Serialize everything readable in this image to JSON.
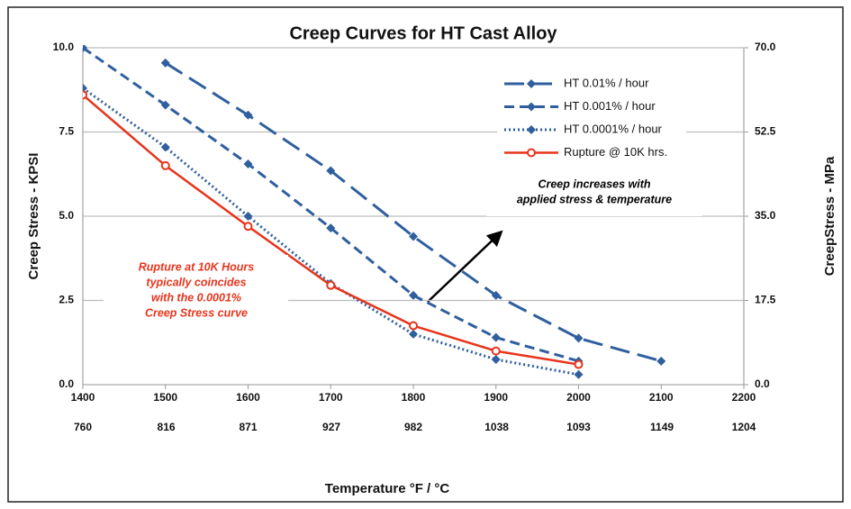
{
  "chart_data": {
    "type": "line",
    "title": "Creep Curves for HT Cast Alloy",
    "y_label": "Creep Stress - KPSI",
    "y2_label": "CreepStress - MPa",
    "x_label": "Temperature °F / °C",
    "xlim": [
      1400,
      2200
    ],
    "xticks": [
      1400,
      1500,
      1600,
      1700,
      1800,
      1900,
      2000,
      2100,
      2200
    ],
    "x2lim": [
      760,
      1204
    ],
    "x2ticks": [
      760,
      816,
      871,
      927,
      982,
      1038,
      1093,
      1149,
      1204
    ],
    "ylim": [
      0,
      10
    ],
    "yticks": [
      {
        "value": 0,
        "label": "0.0"
      },
      2.5,
      {
        "value": 5,
        "label": "5.0"
      },
      7.5,
      {
        "value": 10,
        "label": "10.0"
      }
    ],
    "y2lim": [
      0,
      70
    ],
    "y2ticks": [
      {
        "value": 0,
        "label": "0.0"
      },
      17.5,
      {
        "value": 35,
        "label": "35.0"
      },
      52.5,
      {
        "value": 70,
        "label": "70.0"
      }
    ],
    "grid": true,
    "legend": "top-right",
    "series": [
      {
        "name": "HT  0.01% / hour",
        "color": "#2f5f9e",
        "line_style": "long-dash",
        "marker": "diamond",
        "x": [
          1500,
          1600,
          1700,
          1800,
          1900,
          2000,
          2100
        ],
        "values": [
          9.55,
          8.0,
          6.35,
          4.4,
          2.65,
          1.38,
          0.7
        ]
      },
      {
        "name": "HT  0.001% / hour",
        "color": "#2f5f9e",
        "line_style": "dash",
        "marker": "diamond",
        "x": [
          1400,
          1500,
          1600,
          1700,
          1800,
          1900,
          2000
        ],
        "values": [
          10.0,
          8.3,
          6.55,
          4.65,
          2.65,
          1.4,
          0.7
        ]
      },
      {
        "name": "HT  0.0001% / hour",
        "color": "#2f5f9e",
        "line_style": "dot",
        "marker": "diamond",
        "x": [
          1400,
          1500,
          1600,
          1700,
          1800,
          1900,
          2000
        ],
        "values": [
          8.8,
          7.05,
          5.0,
          3.0,
          1.5,
          0.75,
          0.3
        ]
      },
      {
        "name": "Rupture @ 10K hrs.",
        "color": "#e8341c",
        "line_style": "solid",
        "marker": "open-circle",
        "x": [
          1400,
          1500,
          1600,
          1700,
          1800,
          1900,
          2000
        ],
        "values": [
          8.6,
          6.5,
          4.7,
          2.95,
          1.75,
          1.0,
          0.6
        ]
      }
    ],
    "annotations": [
      {
        "lines": [
          "Rupture at 10K Hours",
          "typically coincides",
          "with the 0.0001%",
          "Creep Stress curve"
        ],
        "color": "#e8341c"
      },
      {
        "lines": [
          "Creep increases with",
          "applied stress & temperature"
        ],
        "color": "#000000"
      }
    ]
  }
}
